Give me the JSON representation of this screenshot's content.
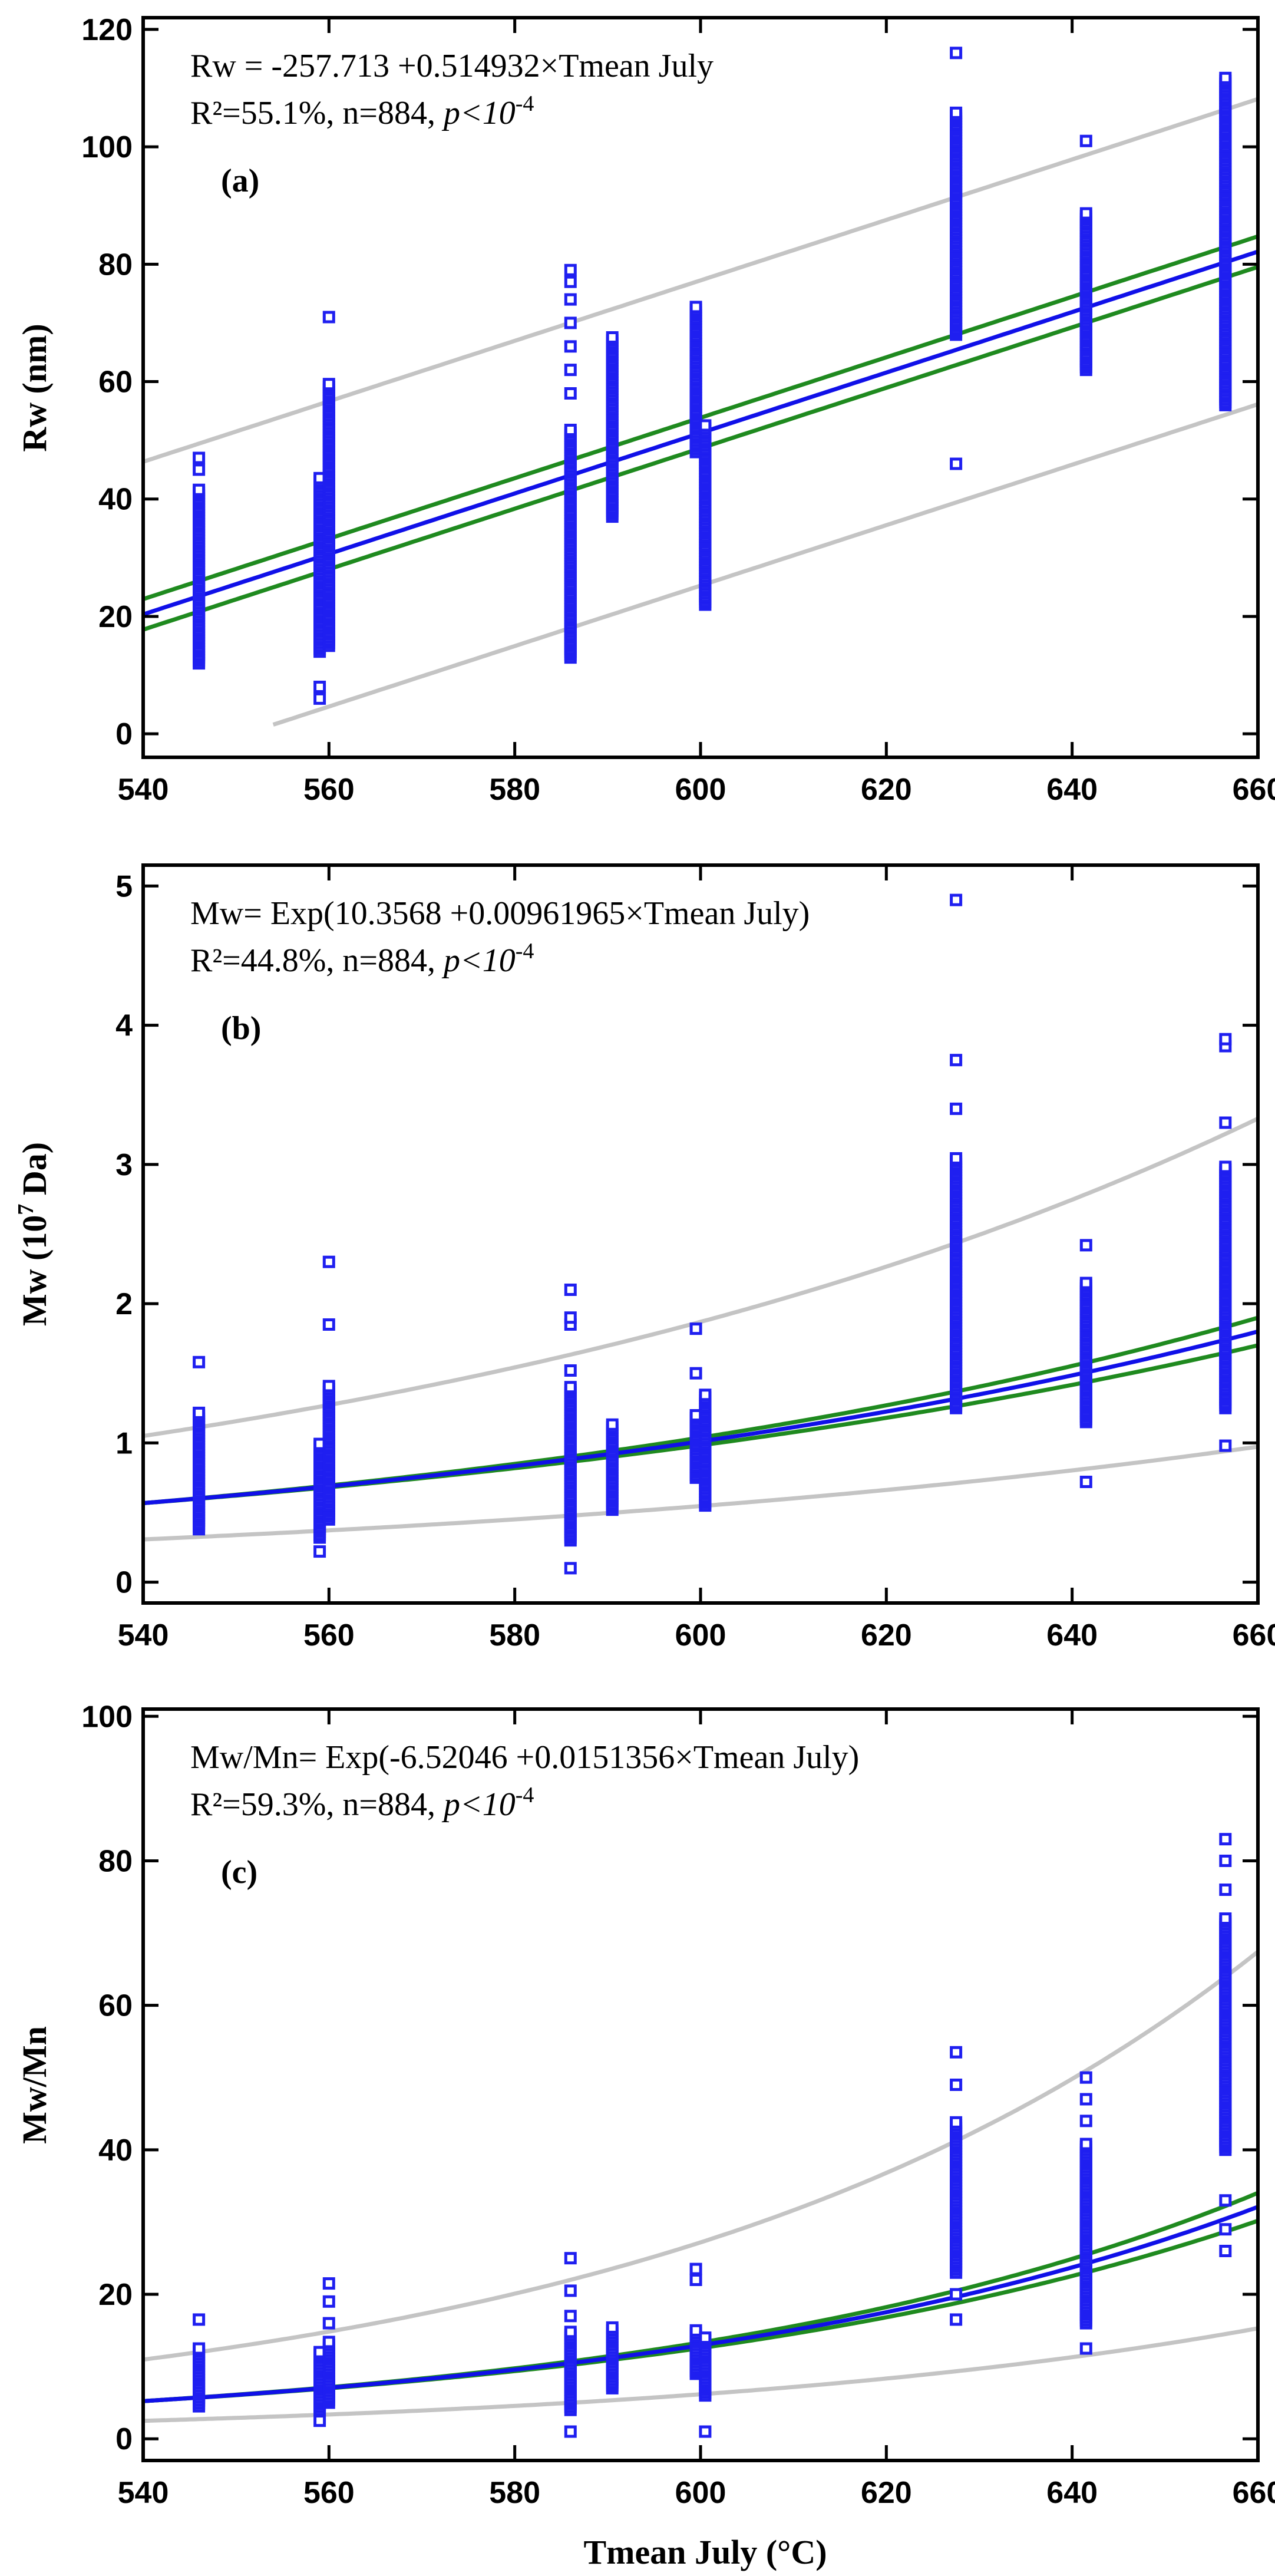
{
  "figure": {
    "xlabel": "Tmean July (°C)"
  },
  "chart_data": [
    {
      "type": "scatter",
      "panel": "a",
      "panel_label": "(a)",
      "equation": "Rw = -257.713 +0.514932×Tmean July",
      "stats": {
        "r2": "R²=55.1%, n=884, ",
        "p": "p<10",
        "p_exp": "-4"
      },
      "ylabel": {
        "main": "Rw (nm)",
        "sup": ""
      },
      "xlim": [
        540,
        660
      ],
      "ylim": [
        -4,
        122
      ],
      "xticks": [
        540,
        560,
        580,
        600,
        620,
        640,
        660
      ],
      "yticks": [
        0,
        20,
        40,
        60,
        80,
        100,
        120
      ],
      "ytick_labels": [
        "0",
        "20",
        "40",
        "60",
        "80",
        "100",
        "120"
      ],
      "fit": "linear",
      "coef": [
        -257.713,
        0.514932
      ],
      "conf_width": 2.6,
      "pred_width": 26,
      "pred_lower_start": 554,
      "columns": [
        {
          "x": 546,
          "ymin": 12,
          "ymax": 42,
          "outliers": [
            45,
            47
          ]
        },
        {
          "x": 559,
          "ymin": 14,
          "ymax": 44,
          "outliers": [
            6,
            8
          ]
        },
        {
          "x": 560,
          "ymin": 15,
          "ymax": 60,
          "outliers": [
            71
          ]
        },
        {
          "x": 586,
          "ymin": 13,
          "ymax": 52,
          "outliers": [
            58,
            62,
            66,
            70,
            74,
            77,
            79
          ]
        },
        {
          "x": 590.5,
          "ymin": 37,
          "ymax": 68,
          "outliers": []
        },
        {
          "x": 599.5,
          "ymin": 48,
          "ymax": 73,
          "outliers": []
        },
        {
          "x": 600.5,
          "ymin": 22,
          "ymax": 53,
          "outliers": []
        },
        {
          "x": 627.5,
          "ymin": 68,
          "ymax": 106,
          "outliers": [
            46,
            116
          ]
        },
        {
          "x": 641.5,
          "ymin": 62,
          "ymax": 89,
          "outliers": [
            101
          ]
        },
        {
          "x": 656.5,
          "ymin": 56,
          "ymax": 112,
          "outliers": []
        }
      ]
    },
    {
      "type": "scatter",
      "panel": "b",
      "panel_label": "(b)",
      "equation": "Mw= Exp(10.3568 +0.00961965×Tmean July)",
      "stats": {
        "r2": "R²=44.8%, n=884, ",
        "p": "p<10",
        "p_exp": "-4"
      },
      "ylabel": {
        "main": "Mw (10",
        "sup": "7",
        "end": " Da)"
      },
      "xlim": [
        540,
        660
      ],
      "ylim": [
        -0.15,
        5.15
      ],
      "xticks": [
        540,
        560,
        580,
        600,
        620,
        640,
        660
      ],
      "yticks": [
        0,
        1,
        2,
        3,
        4,
        5
      ],
      "ytick_labels": [
        "0",
        "1",
        "2",
        "3",
        "4",
        "5"
      ],
      "fit": "exp",
      "coef": [
        10.3568,
        0.00961965
      ],
      "scale": 1e-07,
      "conf_factor": 0.055,
      "pred_factor": 1.85,
      "columns": [
        {
          "x": 546,
          "ymin": 0.38,
          "ymax": 1.22,
          "outliers": [
            1.58
          ]
        },
        {
          "x": 559,
          "ymin": 0.32,
          "ymax": 1.0,
          "outliers": [
            0.22
          ]
        },
        {
          "x": 560,
          "ymin": 0.45,
          "ymax": 1.42,
          "outliers": [
            1.85,
            2.3
          ]
        },
        {
          "x": 586,
          "ymin": 0.3,
          "ymax": 1.42,
          "outliers": [
            0.1,
            1.52,
            1.85,
            1.9,
            2.1
          ]
        },
        {
          "x": 590.5,
          "ymin": 0.52,
          "ymax": 1.15,
          "outliers": []
        },
        {
          "x": 599.5,
          "ymin": 0.75,
          "ymax": 1.2,
          "outliers": [
            1.5,
            1.82
          ]
        },
        {
          "x": 600.5,
          "ymin": 0.55,
          "ymax": 1.35,
          "outliers": []
        },
        {
          "x": 627.5,
          "ymin": 1.25,
          "ymax": 3.05,
          "outliers": [
            3.4,
            3.75,
            4.9
          ]
        },
        {
          "x": 641.5,
          "ymin": 1.15,
          "ymax": 2.15,
          "outliers": [
            0.72,
            2.42
          ]
        },
        {
          "x": 656.5,
          "ymin": 1.25,
          "ymax": 3.0,
          "outliers": [
            0.98,
            3.3,
            3.85,
            3.9
          ]
        }
      ]
    },
    {
      "type": "scatter",
      "panel": "c",
      "panel_label": "(c)",
      "equation": "Mw/Mn= Exp(-6.52046 +0.0151356×Tmean July)",
      "stats": {
        "r2": "R²=59.3%, n=884, ",
        "p": "p<10",
        "p_exp": "-4"
      },
      "ylabel": {
        "main": "Mw/Mn",
        "sup": ""
      },
      "xlim": [
        540,
        660
      ],
      "ylim": [
        -3,
        101
      ],
      "xticks": [
        540,
        560,
        580,
        600,
        620,
        640,
        660
      ],
      "yticks": [
        0,
        20,
        40,
        60,
        80,
        100
      ],
      "ytick_labels": [
        "0",
        "20",
        "40",
        "60",
        "80",
        "100"
      ],
      "fit": "exp",
      "coef": [
        -6.52046,
        0.0151356
      ],
      "scale": 1,
      "conf_factor": 0.06,
      "pred_factor": 2.1,
      "columns": [
        {
          "x": 546,
          "ymin": 4.5,
          "ymax": 12.5,
          "outliers": [
            16.5
          ]
        },
        {
          "x": 559,
          "ymin": 4,
          "ymax": 12,
          "outliers": [
            2.5
          ]
        },
        {
          "x": 560,
          "ymin": 5,
          "ymax": 13.5,
          "outliers": [
            16,
            19,
            21.5
          ]
        },
        {
          "x": 586,
          "ymin": 4,
          "ymax": 15,
          "outliers": [
            1,
            17,
            20.5,
            25
          ]
        },
        {
          "x": 590.5,
          "ymin": 7,
          "ymax": 15.5,
          "outliers": []
        },
        {
          "x": 599.5,
          "ymin": 9,
          "ymax": 15,
          "outliers": [
            22,
            23.5
          ]
        },
        {
          "x": 600.5,
          "ymin": 6,
          "ymax": 14,
          "outliers": [
            1
          ]
        },
        {
          "x": 627.5,
          "ymin": 23,
          "ymax": 44,
          "outliers": [
            16.5,
            20,
            49,
            53.5
          ]
        },
        {
          "x": 641.5,
          "ymin": 16,
          "ymax": 41,
          "outliers": [
            12.5,
            44,
            47,
            50
          ]
        },
        {
          "x": 656.5,
          "ymin": 40,
          "ymax": 72,
          "outliers": [
            26,
            29,
            33,
            76,
            80,
            83
          ]
        }
      ]
    }
  ],
  "colors": {
    "points": "#1f1ff0",
    "fit": "#1010e8",
    "confidence": "#1f8a1f",
    "prediction": "#c4c4c4",
    "frame": "#000000"
  }
}
